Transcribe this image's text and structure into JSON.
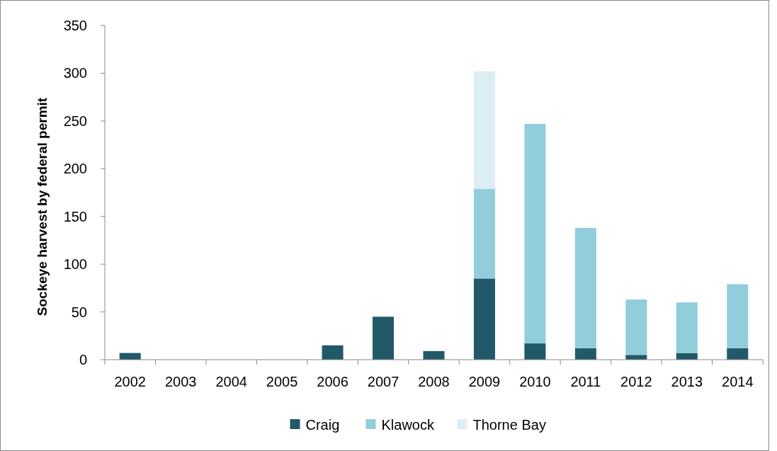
{
  "chart_data": {
    "type": "bar",
    "stacked": true,
    "ylabel": "Sockeye harvest  by federal permit",
    "categories": [
      "2002",
      "2003",
      "2004",
      "2005",
      "2006",
      "2007",
      "2008",
      "2009",
      "2010",
      "2011",
      "2012",
      "2013",
      "2014"
    ],
    "series": [
      {
        "name": "Craig",
        "color": "#215968",
        "values": [
          7,
          0,
          0,
          0,
          15,
          45,
          9,
          85,
          17,
          12,
          5,
          7,
          12
        ]
      },
      {
        "name": "Klawock",
        "color": "#92cddc",
        "values": [
          0,
          0,
          0,
          0,
          0,
          0,
          0,
          94,
          230,
          126,
          58,
          53,
          67
        ]
      },
      {
        "name": "Thorne Bay",
        "color": "#dbeef4",
        "values": [
          0,
          0,
          0,
          0,
          0,
          0,
          0,
          123,
          0,
          0,
          0,
          0,
          0
        ]
      }
    ],
    "ylim": [
      0,
      350
    ],
    "yticks": [
      0,
      50,
      100,
      150,
      200,
      250,
      300,
      350
    ],
    "grid": false,
    "legend": "bottom"
  }
}
